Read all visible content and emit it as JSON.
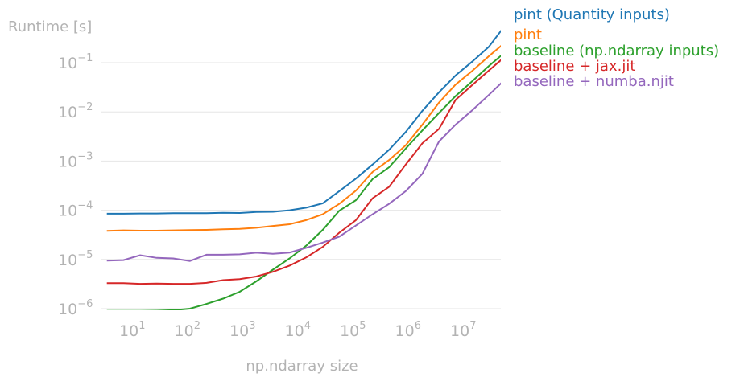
{
  "chart_data": {
    "type": "line",
    "xlabel": "np.ndarray size",
    "ylabel": "Runtime [s]",
    "xscale": "log",
    "yscale": "log",
    "xlim": [
      4,
      70000000
    ],
    "ylim": [
      9e-07,
      0.3
    ],
    "grid": "horizontal",
    "legend_placement": "right, at line ends",
    "x_ticks": [
      {
        "value": 10,
        "base": "10",
        "exp": "1"
      },
      {
        "value": 100,
        "base": "10",
        "exp": "2"
      },
      {
        "value": 1000,
        "base": "10",
        "exp": "3"
      },
      {
        "value": 10000,
        "base": "10",
        "exp": "4"
      },
      {
        "value": 100000,
        "base": "10",
        "exp": "5"
      },
      {
        "value": 1000000,
        "base": "10",
        "exp": "6"
      },
      {
        "value": 10000000,
        "base": "10",
        "exp": "7"
      }
    ],
    "y_ticks": [
      {
        "value": 1e-06,
        "base": "10",
        "exp": "−6"
      },
      {
        "value": 1e-05,
        "base": "10",
        "exp": "−5"
      },
      {
        "value": 0.0001,
        "base": "10",
        "exp": "−4"
      },
      {
        "value": 0.001,
        "base": "10",
        "exp": "−3"
      },
      {
        "value": 0.01,
        "base": "10",
        "exp": "−2"
      },
      {
        "value": 0.1,
        "base": "10",
        "exp": "−1"
      }
    ],
    "x": [
      4,
      8,
      16,
      32,
      64,
      128,
      256,
      512,
      1024,
      2048,
      4096,
      8192,
      16384,
      32768,
      65536,
      131072,
      262144,
      524288,
      1048576,
      2097152,
      4194304,
      8388608,
      16777216,
      33554432,
      67108864
    ],
    "series": [
      {
        "name": "pint (Quantity inputs)",
        "color": "#1f77b4",
        "values": [
          8.5e-05,
          8.5e-05,
          8.6e-05,
          8.6e-05,
          8.7e-05,
          8.7e-05,
          8.7e-05,
          8.9e-05,
          8.8e-05,
          9.2e-05,
          9.3e-05,
          0.0001,
          0.000113,
          0.000138,
          0.000245,
          0.00044,
          0.00085,
          0.0017,
          0.0039,
          0.0105,
          0.025,
          0.055,
          0.105,
          0.21,
          0.58
        ]
      },
      {
        "name": "pint",
        "color": "#ff7f0e",
        "values": [
          3.8e-05,
          3.9e-05,
          3.85e-05,
          3.85e-05,
          3.9e-05,
          3.95e-05,
          4e-05,
          4.1e-05,
          4.2e-05,
          4.4e-05,
          4.8e-05,
          5.2e-05,
          6.3e-05,
          8.3e-05,
          0.000135,
          0.00025,
          0.0006,
          0.00105,
          0.0021,
          0.0055,
          0.0155,
          0.036,
          0.068,
          0.135,
          0.26
        ]
      },
      {
        "name": "baseline (np.ndarray inputs)",
        "color": "#2ca02c",
        "values": [
          9e-07,
          9e-07,
          9e-07,
          9.1e-07,
          9.3e-07,
          1e-06,
          1.25e-06,
          1.6e-06,
          2.2e-06,
          3.6e-06,
          6.2e-06,
          1.05e-05,
          1.9e-05,
          4e-05,
          9.8e-05,
          0.00016,
          0.00043,
          0.00075,
          0.0018,
          0.0042,
          0.0095,
          0.021,
          0.042,
          0.085,
          0.165
        ]
      },
      {
        "name": "baseline + jax.jit",
        "color": "#d62728",
        "values": [
          3.3e-06,
          3.3e-06,
          3.2e-06,
          3.25e-06,
          3.2e-06,
          3.2e-06,
          3.35e-06,
          3.8e-06,
          4e-06,
          4.5e-06,
          5.6e-06,
          7.5e-06,
          1.1e-05,
          1.8e-05,
          3.5e-05,
          6.3e-05,
          0.000175,
          0.0003,
          0.00085,
          0.0023,
          0.0045,
          0.0175,
          0.035,
          0.069,
          0.135
        ]
      },
      {
        "name": "baseline + numba.njit",
        "color": "#9467bd",
        "values": [
          9.5e-06,
          9.7e-06,
          1.22e-05,
          1.08e-05,
          1.05e-05,
          9.3e-06,
          1.25e-05,
          1.25e-05,
          1.27e-05,
          1.37e-05,
          1.3e-05,
          1.38e-05,
          1.72e-05,
          2.2e-05,
          2.9e-05,
          4.9e-05,
          8.3e-05,
          0.000135,
          0.000245,
          0.00055,
          0.0025,
          0.0055,
          0.0108,
          0.022,
          0.046
        ]
      }
    ]
  }
}
